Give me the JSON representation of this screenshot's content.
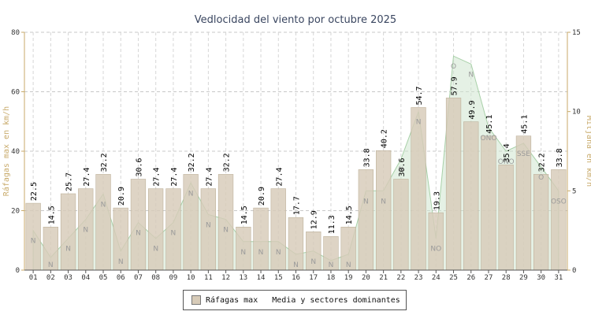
{
  "chart_data": {
    "type": "bar",
    "title": "Vedlocidad del viento por octubre 2025",
    "ylabel_left": "Ráfagas max en km/h",
    "ylabel_right": "Mitjana en km/h",
    "ylim_left": [
      0,
      80
    ],
    "ylim_right": [
      0,
      15
    ],
    "yticks_left": [
      "0",
      "20",
      "40",
      "60",
      "80"
    ],
    "yticks_right": [
      "0",
      "5",
      "10",
      "15"
    ],
    "categories": [
      "01",
      "02",
      "03",
      "04",
      "05",
      "06",
      "07",
      "08",
      "09",
      "10",
      "11",
      "12",
      "13",
      "14",
      "15",
      "16",
      "17",
      "18",
      "19",
      "20",
      "21",
      "22",
      "23",
      "24",
      "25",
      "26",
      "27",
      "28",
      "29",
      "30",
      "31"
    ],
    "grid": true,
    "legend_position": "bottom",
    "series": [
      {
        "name": "Ráfagas max",
        "axis": "left",
        "color": "#d7cbb8",
        "values": [
          22.5,
          14.5,
          25.7,
          27.4,
          32.2,
          20.9,
          30.6,
          27.4,
          27.4,
          32.2,
          27.4,
          32.2,
          14.5,
          20.9,
          27.4,
          17.7,
          12.9,
          11.3,
          14.5,
          33.8,
          40.2,
          30.6,
          54.7,
          19.3,
          57.9,
          49.9,
          45.1,
          35.4,
          45.1,
          32.2,
          33.8
        ]
      },
      {
        "name": "Media y sectores dominantes",
        "axis": "right",
        "type": "area",
        "color": "#cfe6cf",
        "values": [
          2.5,
          0.8,
          2.0,
          3.2,
          4.8,
          1.2,
          3.0,
          2.0,
          3.0,
          5.5,
          3.5,
          3.2,
          1.8,
          1.8,
          1.8,
          1.0,
          1.2,
          0.6,
          1.0,
          5.0,
          5.0,
          7.0,
          10.0,
          2.0,
          13.5,
          13.0,
          9.0,
          7.5,
          8.0,
          6.5,
          5.0
        ],
        "sectors": [
          "N",
          "N",
          "N",
          "N",
          "N",
          "N",
          "N",
          "N",
          "N",
          "N",
          "N",
          "N",
          "N",
          "N",
          "N",
          "N",
          "N",
          "N",
          "N",
          "N",
          "N",
          "N",
          "N",
          "NO",
          "O",
          "N",
          "ONO",
          "ONO",
          "SSE",
          "O",
          "OSO"
        ]
      }
    ]
  }
}
